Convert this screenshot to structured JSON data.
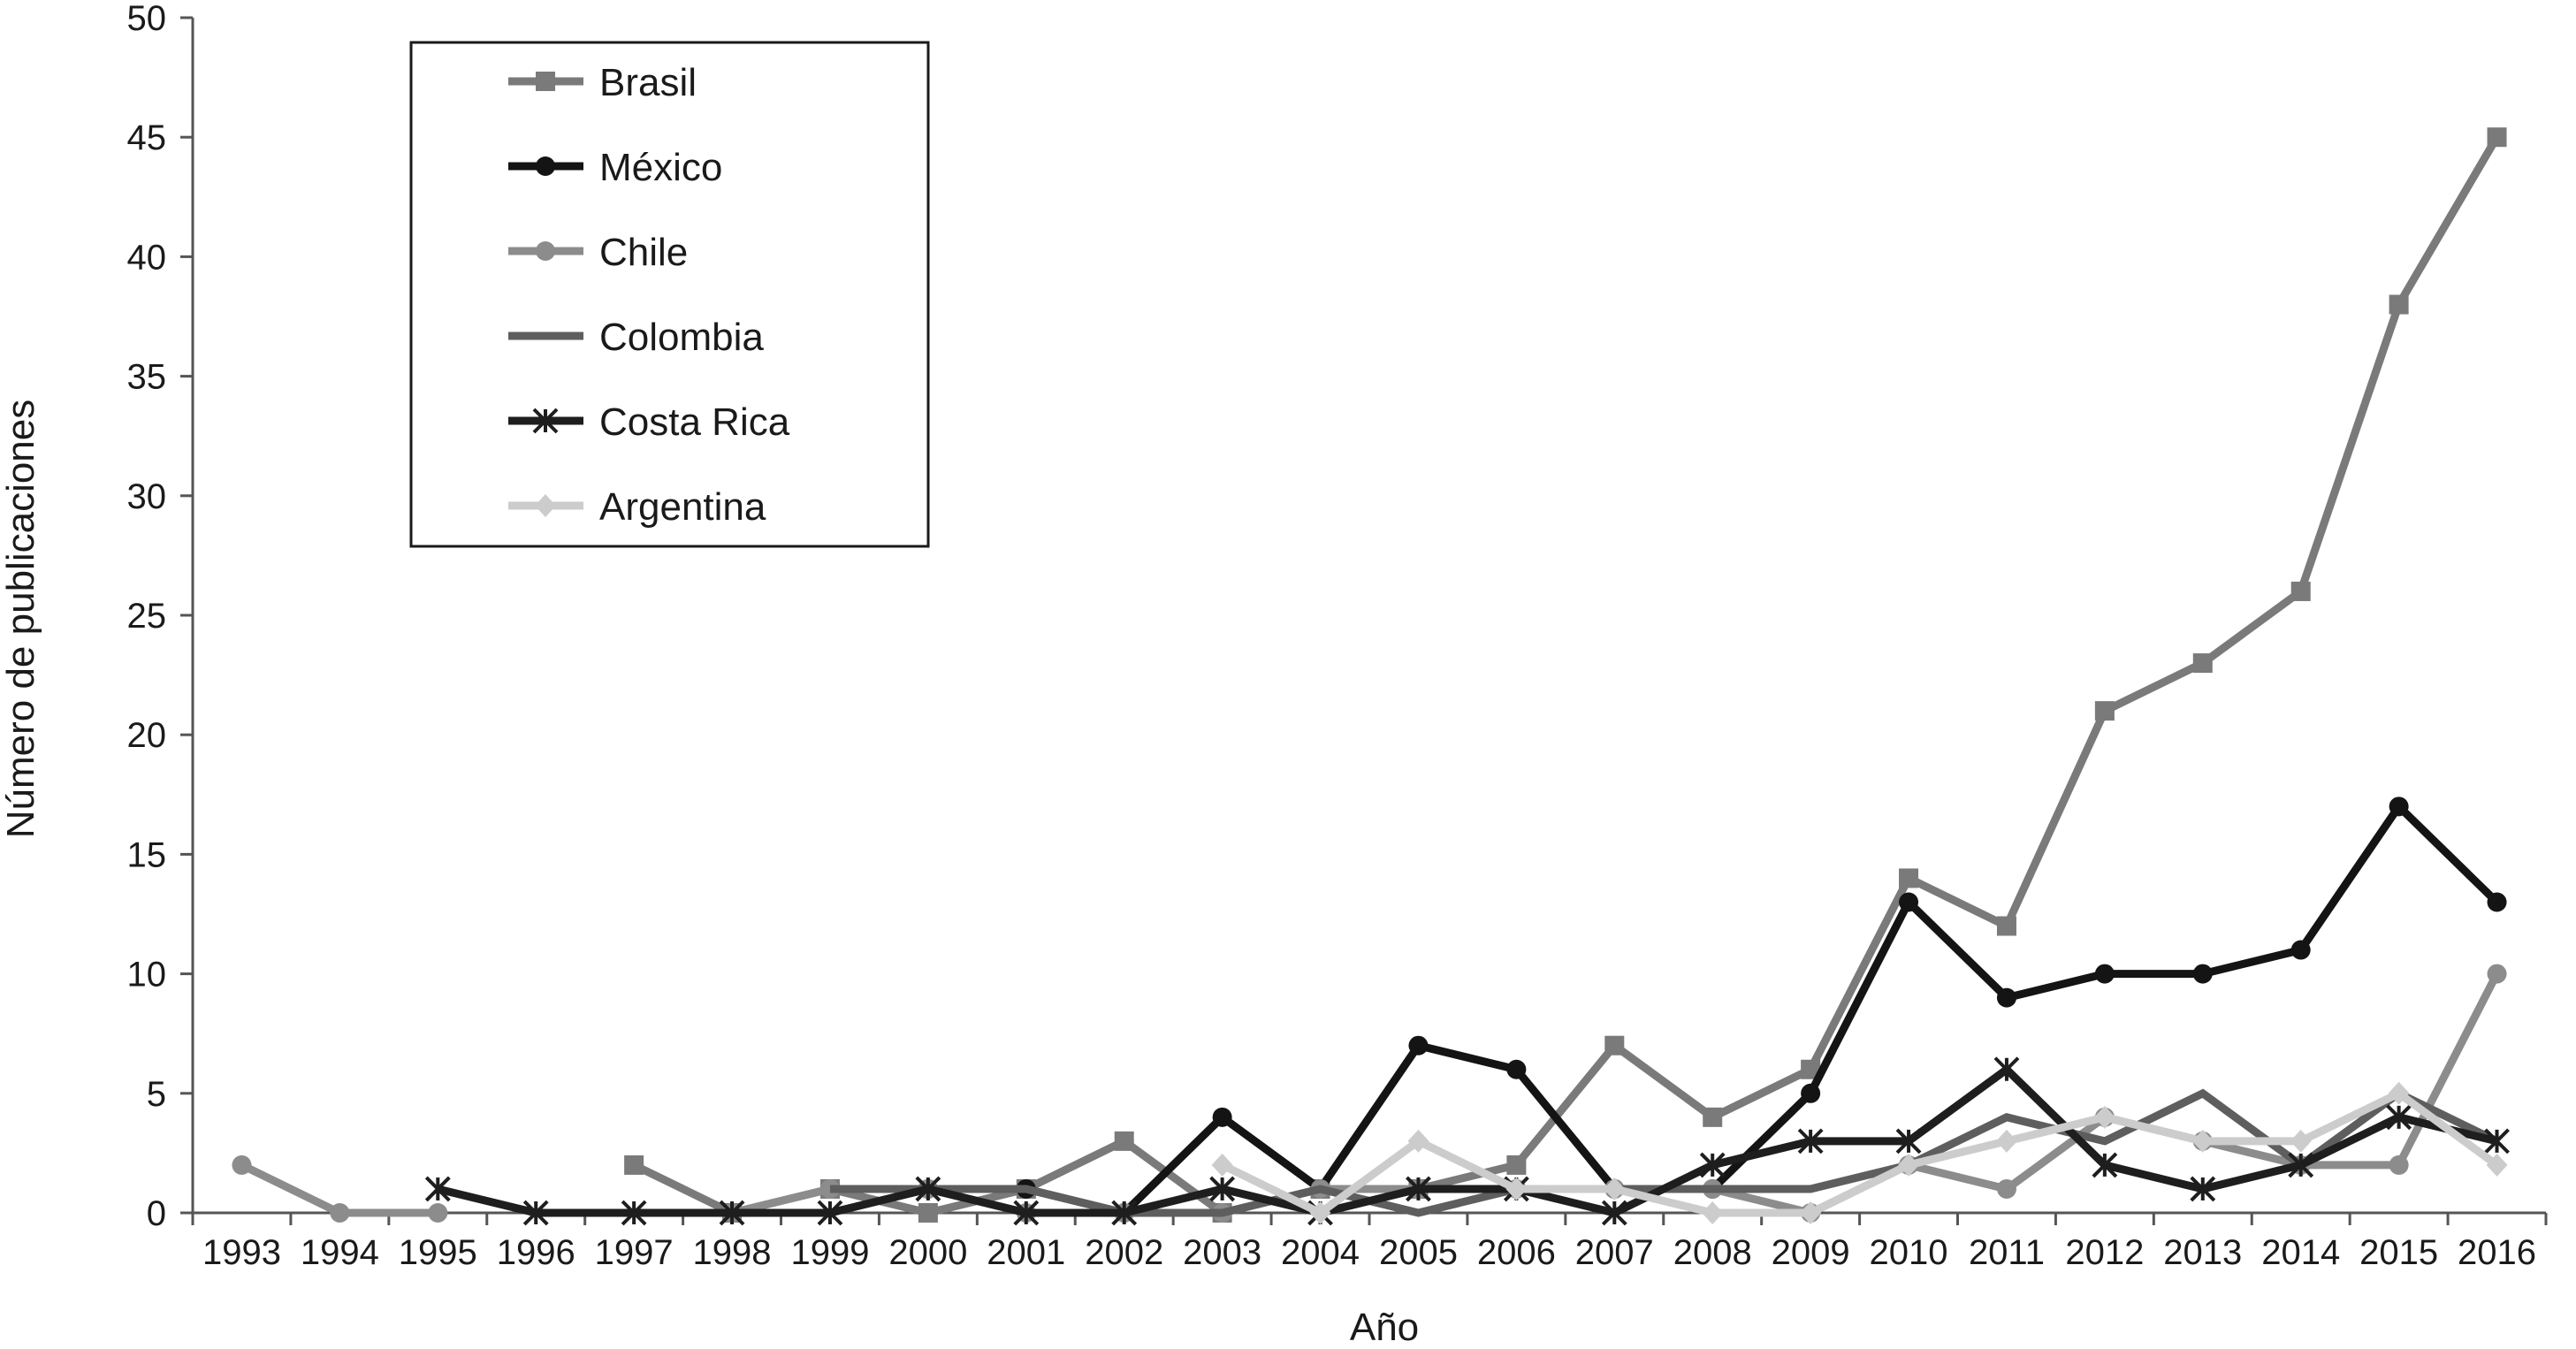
{
  "chart_data": {
    "type": "line",
    "xlabel": "Año",
    "ylabel": "Número de publicaciones",
    "ylim": [
      0,
      50
    ],
    "yticks": [
      0,
      5,
      10,
      15,
      20,
      25,
      30,
      35,
      40,
      45,
      50
    ],
    "x": [
      "1993",
      "1994",
      "1995",
      "1996",
      "1997",
      "1998",
      "1999",
      "2000",
      "2001",
      "2002",
      "2003",
      "2004",
      "2005",
      "2006",
      "2007",
      "2008",
      "2009",
      "2010",
      "2011",
      "2012",
      "2013",
      "2014",
      "2015",
      "2016"
    ],
    "grid": false,
    "legend_position": "top-left",
    "series": [
      {
        "name": "Brasil",
        "color": "#7a7a7a",
        "marker": "square",
        "values": [
          null,
          null,
          null,
          null,
          2,
          0,
          1,
          0,
          1,
          3,
          0,
          1,
          1,
          2,
          7,
          4,
          6,
          14,
          12,
          21,
          23,
          26,
          38,
          45
        ]
      },
      {
        "name": "México",
        "color": "#141414",
        "marker": "circle",
        "values": [
          null,
          null,
          null,
          null,
          null,
          null,
          null,
          1,
          1,
          0,
          4,
          1,
          7,
          6,
          1,
          1,
          5,
          13,
          9,
          10,
          10,
          11,
          17,
          13
        ]
      },
      {
        "name": "Chile",
        "color": "#8c8c8c",
        "marker": "circle",
        "values": [
          2,
          0,
          0,
          null,
          null,
          0,
          1,
          1,
          0,
          0,
          0,
          1,
          1,
          1,
          1,
          1,
          0,
          2,
          1,
          4,
          3,
          2,
          2,
          10
        ]
      },
      {
        "name": "Colombia",
        "color": "#5e5e5e",
        "marker": "none",
        "values": [
          null,
          null,
          null,
          null,
          null,
          null,
          1,
          1,
          1,
          0,
          0,
          1,
          0,
          1,
          1,
          1,
          1,
          2,
          4,
          3,
          5,
          2,
          5,
          3
        ]
      },
      {
        "name": "Costa Rica",
        "color": "#1e1e1e",
        "marker": "asterisk",
        "values": [
          null,
          null,
          1,
          0,
          0,
          0,
          0,
          1,
          0,
          0,
          1,
          0,
          1,
          1,
          0,
          2,
          3,
          3,
          6,
          2,
          1,
          2,
          4,
          3
        ]
      },
      {
        "name": "Argentina",
        "color": "#cccccc",
        "marker": "diamond",
        "values": [
          null,
          null,
          null,
          null,
          null,
          null,
          null,
          null,
          null,
          null,
          2,
          0,
          3,
          1,
          1,
          0,
          0,
          2,
          3,
          4,
          3,
          3,
          5,
          2
        ]
      }
    ]
  }
}
